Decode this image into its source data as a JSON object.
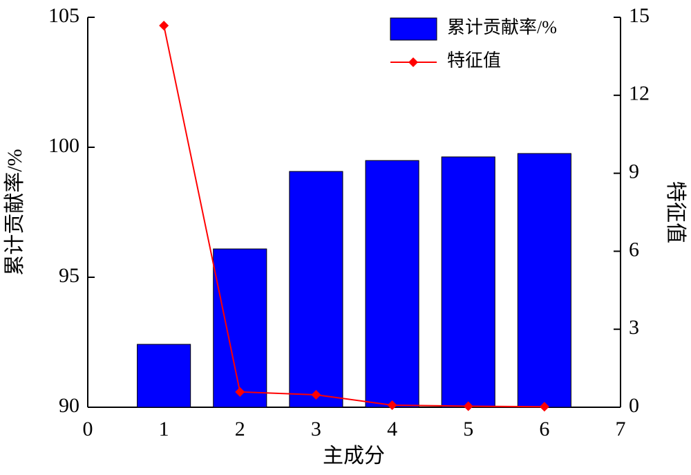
{
  "chart_data": {
    "type": "bar_line",
    "x": [
      1,
      2,
      3,
      4,
      5,
      6
    ],
    "xlabel": "主成分",
    "ylabel": "累计贡献率/%",
    "y2label": "特征值",
    "xlim": [
      0,
      7
    ],
    "xticks": [
      0,
      1,
      2,
      3,
      4,
      5,
      6,
      7
    ],
    "ylim": [
      90,
      105
    ],
    "yticks": [
      90,
      95,
      100,
      105
    ],
    "y2lim": [
      0,
      15
    ],
    "y2ticks": [
      0,
      3,
      6,
      9,
      12,
      15
    ],
    "series": [
      {
        "name": "累计贡献率/%",
        "type": "bar",
        "color": "#0000ff",
        "values": [
          92.42,
          96.09,
          99.07,
          99.49,
          99.63,
          99.76
        ]
      },
      {
        "name": "特征值",
        "type": "line",
        "axis": "y2",
        "color": "#ff0000",
        "values": [
          14.68,
          0.59,
          0.48,
          0.08,
          0.04,
          0.02
        ]
      }
    ],
    "legend": "upper-right"
  }
}
